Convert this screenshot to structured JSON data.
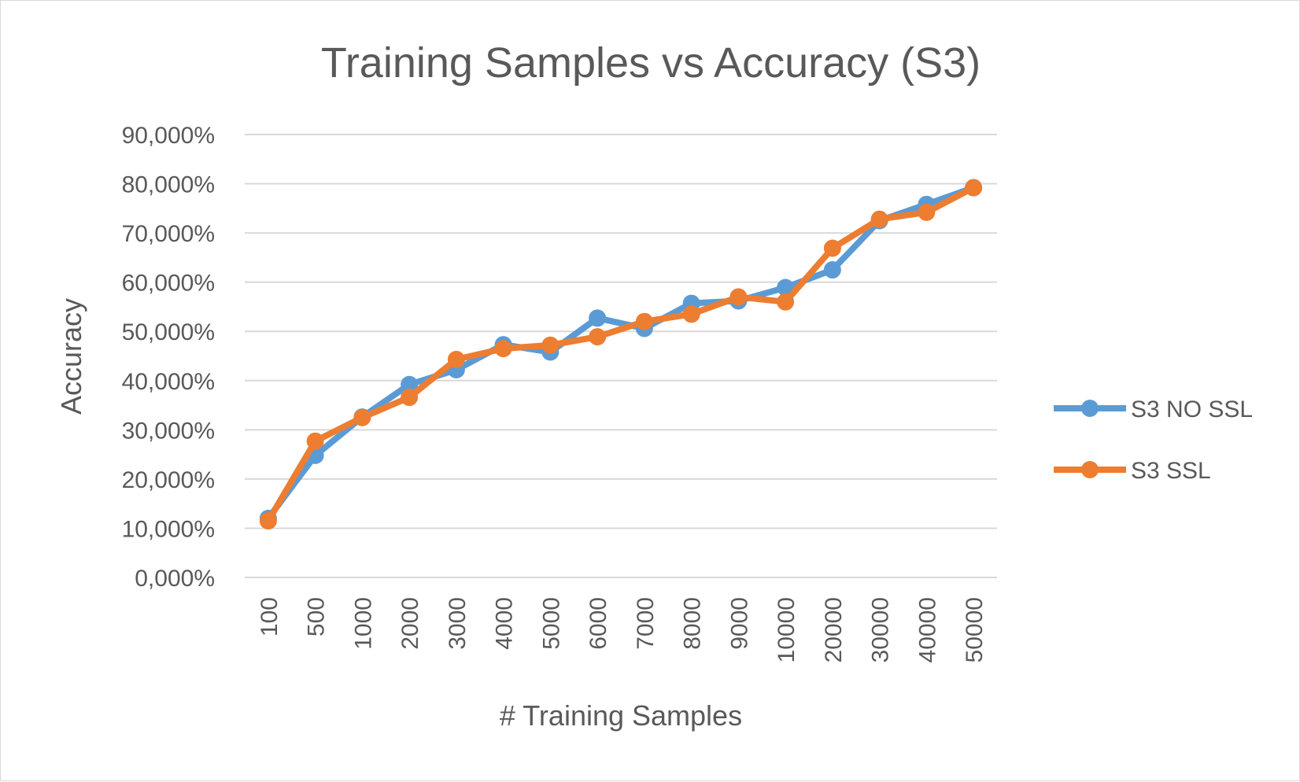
{
  "chart_data": {
    "type": "line",
    "title": "Training Samples vs Accuracy (S3)",
    "xlabel": "# Training Samples",
    "ylabel": "Accuracy",
    "categories": [
      "100",
      "500",
      "1000",
      "2000",
      "3000",
      "4000",
      "5000",
      "6000",
      "7000",
      "8000",
      "9000",
      "10000",
      "20000",
      "30000",
      "40000",
      "50000"
    ],
    "y_ticks": [
      "0,000%",
      "10,000%",
      "20,000%",
      "30,000%",
      "40,000%",
      "50,000%",
      "60,000%",
      "70,000%",
      "80,000%",
      "90,000%"
    ],
    "ylim": [
      0,
      90
    ],
    "grid": true,
    "legend_position": "right",
    "series": [
      {
        "name": "S3 NO SSL",
        "color": "#5B9BD5",
        "values": [
          12.0,
          24.8,
          32.6,
          39.2,
          42.2,
          47.3,
          45.8,
          52.7,
          50.6,
          55.7,
          56.2,
          58.9,
          62.5,
          72.5,
          75.8,
          79.2
        ]
      },
      {
        "name": "S3 SSL",
        "color": "#ED7D31",
        "values": [
          11.5,
          27.7,
          32.5,
          36.6,
          44.3,
          46.5,
          47.2,
          48.9,
          52.0,
          53.5,
          57.0,
          56.0,
          66.9,
          72.8,
          74.2,
          79.2
        ]
      }
    ]
  }
}
